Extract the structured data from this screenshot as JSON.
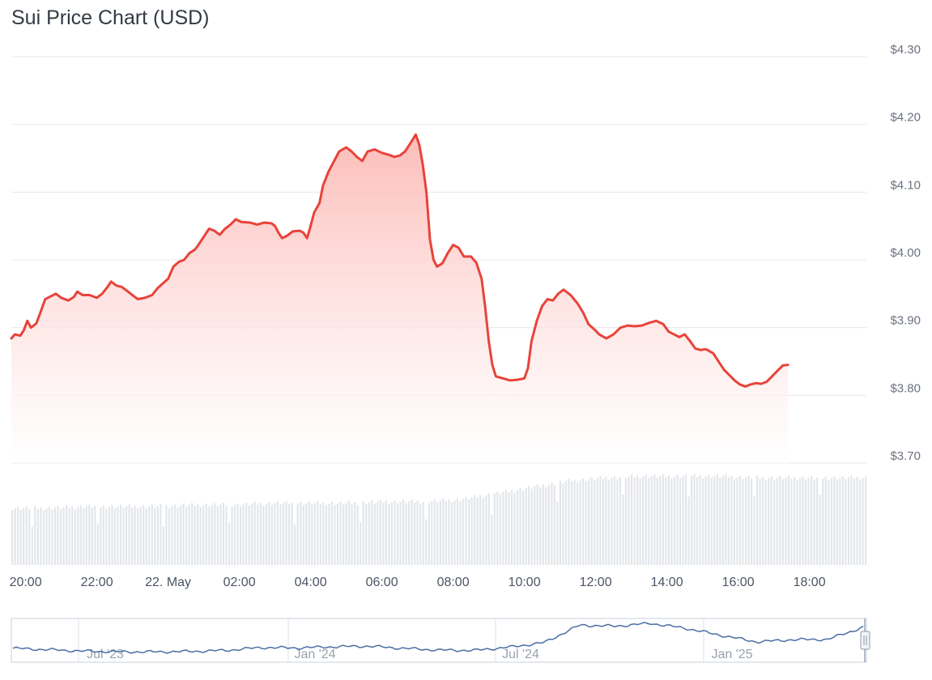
{
  "chart_data": {
    "type": "area",
    "title": "Sui Price Chart (USD)",
    "currency": "USD",
    "ylim": [
      3.7,
      4.3
    ],
    "yticks": [
      {
        "value": 4.3,
        "label": "$4.30"
      },
      {
        "value": 4.2,
        "label": "$4.20"
      },
      {
        "value": 4.1,
        "label": "$4.10"
      },
      {
        "value": 4.0,
        "label": "$4.00"
      },
      {
        "value": 3.9,
        "label": "$3.90"
      },
      {
        "value": 3.8,
        "label": "$3.80"
      },
      {
        "value": 3.7,
        "label": "$3.70"
      }
    ],
    "x_hours_start": 19.6,
    "x_hours_end": 43.6,
    "xticks": [
      {
        "value": 20,
        "label": "20:00"
      },
      {
        "value": 22,
        "label": "22:00"
      },
      {
        "value": 24,
        "label": "22. May"
      },
      {
        "value": 26,
        "label": "02:00"
      },
      {
        "value": 28,
        "label": "04:00"
      },
      {
        "value": 30,
        "label": "06:00"
      },
      {
        "value": 32,
        "label": "08:00"
      },
      {
        "value": 34,
        "label": "10:00"
      },
      {
        "value": 36,
        "label": "12:00"
      },
      {
        "value": 38,
        "label": "14:00"
      },
      {
        "value": 40,
        "label": "16:00"
      },
      {
        "value": 42,
        "label": "18:00"
      }
    ],
    "grid": true,
    "colors": {
      "line": "#e8433a",
      "fill_top": "#fcb9b5",
      "fill_bottom": "#ffffff",
      "grid": "#e6e8eb",
      "volume": "#e3e6ea",
      "navigator_line": "#4a6fa5",
      "navigator_border": "#c9d1dc"
    },
    "series": [
      {
        "values": [
          [
            19.6,
            3.884
          ],
          [
            19.7,
            3.89
          ],
          [
            19.85,
            3.888
          ],
          [
            19.95,
            3.896
          ],
          [
            20.05,
            3.91
          ],
          [
            20.15,
            3.9
          ],
          [
            20.3,
            3.906
          ],
          [
            20.4,
            3.92
          ],
          [
            20.55,
            3.942
          ],
          [
            20.7,
            3.946
          ],
          [
            20.85,
            3.95
          ],
          [
            21.0,
            3.944
          ],
          [
            21.2,
            3.94
          ],
          [
            21.35,
            3.945
          ],
          [
            21.45,
            3.953
          ],
          [
            21.6,
            3.948
          ],
          [
            21.8,
            3.948
          ],
          [
            22.0,
            3.944
          ],
          [
            22.15,
            3.95
          ],
          [
            22.3,
            3.96
          ],
          [
            22.4,
            3.968
          ],
          [
            22.55,
            3.962
          ],
          [
            22.7,
            3.96
          ],
          [
            22.85,
            3.954
          ],
          [
            23.0,
            3.948
          ],
          [
            23.15,
            3.942
          ],
          [
            23.35,
            3.944
          ],
          [
            23.55,
            3.948
          ],
          [
            23.7,
            3.958
          ],
          [
            23.85,
            3.965
          ],
          [
            24.0,
            3.972
          ],
          [
            24.15,
            3.99
          ],
          [
            24.3,
            3.997
          ],
          [
            24.45,
            4.0
          ],
          [
            24.6,
            4.01
          ],
          [
            24.75,
            4.015
          ],
          [
            24.85,
            4.022
          ],
          [
            25.0,
            4.034
          ],
          [
            25.15,
            4.046
          ],
          [
            25.3,
            4.043
          ],
          [
            25.45,
            4.037
          ],
          [
            25.6,
            4.046
          ],
          [
            25.75,
            4.052
          ],
          [
            25.9,
            4.06
          ],
          [
            26.05,
            4.056
          ],
          [
            26.3,
            4.055
          ],
          [
            26.5,
            4.052
          ],
          [
            26.7,
            4.055
          ],
          [
            26.9,
            4.054
          ],
          [
            27.0,
            4.05
          ],
          [
            27.1,
            4.04
          ],
          [
            27.2,
            4.032
          ],
          [
            27.35,
            4.036
          ],
          [
            27.5,
            4.042
          ],
          [
            27.7,
            4.043
          ],
          [
            27.8,
            4.04
          ],
          [
            27.9,
            4.032
          ],
          [
            28.0,
            4.05
          ],
          [
            28.1,
            4.07
          ],
          [
            28.25,
            4.084
          ],
          [
            28.35,
            4.11
          ],
          [
            28.5,
            4.13
          ],
          [
            28.65,
            4.145
          ],
          [
            28.8,
            4.16
          ],
          [
            29.0,
            4.166
          ],
          [
            29.15,
            4.16
          ],
          [
            29.3,
            4.152
          ],
          [
            29.45,
            4.146
          ],
          [
            29.6,
            4.16
          ],
          [
            29.8,
            4.163
          ],
          [
            30.0,
            4.158
          ],
          [
            30.2,
            4.155
          ],
          [
            30.35,
            4.152
          ],
          [
            30.5,
            4.154
          ],
          [
            30.65,
            4.16
          ],
          [
            30.8,
            4.172
          ],
          [
            30.95,
            4.185
          ],
          [
            31.05,
            4.17
          ],
          [
            31.15,
            4.14
          ],
          [
            31.25,
            4.1
          ],
          [
            31.35,
            4.03
          ],
          [
            31.45,
            4.0
          ],
          [
            31.55,
            3.99
          ],
          [
            31.7,
            3.995
          ],
          [
            31.85,
            4.01
          ],
          [
            32.0,
            4.022
          ],
          [
            32.15,
            4.018
          ],
          [
            32.3,
            4.005
          ],
          [
            32.5,
            4.005
          ],
          [
            32.65,
            3.996
          ],
          [
            32.8,
            3.972
          ],
          [
            32.9,
            3.93
          ],
          [
            33.0,
            3.88
          ],
          [
            33.1,
            3.845
          ],
          [
            33.2,
            3.828
          ],
          [
            33.4,
            3.825
          ],
          [
            33.6,
            3.822
          ],
          [
            33.8,
            3.823
          ],
          [
            34.0,
            3.825
          ],
          [
            34.1,
            3.84
          ],
          [
            34.2,
            3.88
          ],
          [
            34.35,
            3.91
          ],
          [
            34.5,
            3.932
          ],
          [
            34.65,
            3.942
          ],
          [
            34.8,
            3.94
          ],
          [
            34.95,
            3.95
          ],
          [
            35.1,
            3.956
          ],
          [
            35.3,
            3.948
          ],
          [
            35.5,
            3.935
          ],
          [
            35.65,
            3.922
          ],
          [
            35.8,
            3.905
          ],
          [
            35.95,
            3.898
          ],
          [
            36.1,
            3.89
          ],
          [
            36.3,
            3.884
          ],
          [
            36.5,
            3.89
          ],
          [
            36.7,
            3.9
          ],
          [
            36.9,
            3.903
          ],
          [
            37.1,
            3.902
          ],
          [
            37.3,
            3.903
          ],
          [
            37.5,
            3.907
          ],
          [
            37.7,
            3.91
          ],
          [
            37.9,
            3.905
          ],
          [
            38.05,
            3.894
          ],
          [
            38.2,
            3.89
          ],
          [
            38.35,
            3.886
          ],
          [
            38.5,
            3.89
          ],
          [
            38.65,
            3.88
          ],
          [
            38.8,
            3.869
          ],
          [
            38.95,
            3.867
          ],
          [
            39.1,
            3.868
          ],
          [
            39.3,
            3.862
          ],
          [
            39.45,
            3.85
          ],
          [
            39.6,
            3.838
          ],
          [
            39.75,
            3.83
          ],
          [
            39.9,
            3.822
          ],
          [
            40.05,
            3.816
          ],
          [
            40.2,
            3.813
          ],
          [
            40.35,
            3.816
          ],
          [
            40.5,
            3.818
          ],
          [
            40.65,
            3.817
          ],
          [
            40.8,
            3.82
          ],
          [
            40.95,
            3.828
          ],
          [
            41.1,
            3.836
          ],
          [
            41.25,
            3.844
          ],
          [
            41.4,
            3.845
          ]
        ]
      }
    ],
    "volume_levels": [
      0.36,
      0.36,
      0.37,
      0.37,
      0.37,
      0.38,
      0.38,
      0.39,
      0.39,
      0.39,
      0.4,
      0.4,
      0.41,
      0.45,
      0.49,
      0.53,
      0.55,
      0.56,
      0.56,
      0.56,
      0.55,
      0.55,
      0.55,
      0.55
    ],
    "navigator": {
      "x_labels": [
        "Jul '23",
        "Jan '24",
        "Jul '24",
        "Jan '25"
      ],
      "values": [
        0.3,
        0.26,
        0.22,
        0.2,
        0.2,
        0.21,
        0.24,
        0.32,
        0.31,
        0.34,
        0.36,
        0.3,
        0.25,
        0.24,
        0.33,
        0.46,
        0.95,
        0.92,
        1.0,
        0.86,
        0.66,
        0.48,
        0.54,
        0.55,
        0.89
      ]
    }
  }
}
